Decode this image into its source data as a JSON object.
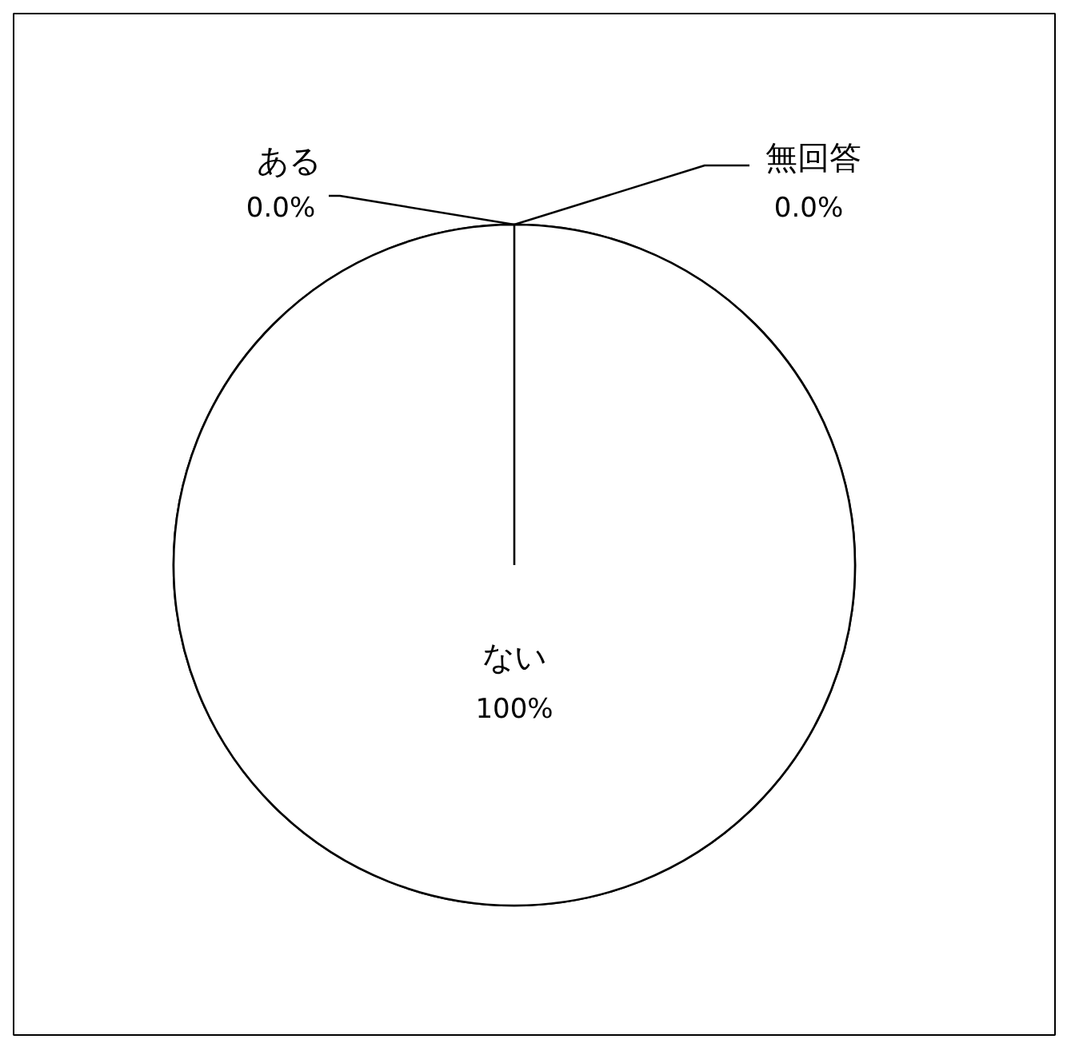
{
  "chart_data": {
    "type": "pie",
    "categories": [
      "ある",
      "ない",
      "無回答"
    ],
    "values": [
      0,
      100,
      0
    ],
    "colors": [
      "#ffffff",
      "#ffffff",
      "#ffffff"
    ],
    "value_labels": [
      "0.0%",
      "100%",
      "0.0%"
    ]
  }
}
